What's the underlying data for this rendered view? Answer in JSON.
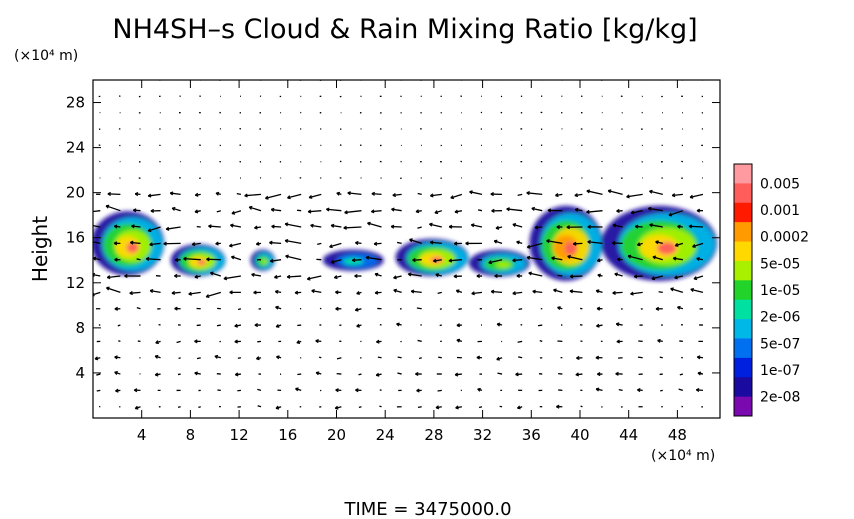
{
  "chart_data": {
    "type": "heatmap",
    "title": "NH4SH–s Cloud & Rain Mixing Ratio [kg/kg]",
    "ylabel": "Height",
    "xunit": "(×10⁴ m)",
    "yunit": "(×10⁴ m)",
    "footer": "TIME  =  3475000.0",
    "xlim": [
      0,
      51.5
    ],
    "ylim": [
      0,
      30
    ],
    "xticks": [
      "4",
      "8",
      "12",
      "16",
      "20",
      "24",
      "28",
      "32",
      "36",
      "40",
      "44",
      "48"
    ],
    "yticks": [
      "4",
      "8",
      "12",
      "16",
      "20",
      "24",
      "28"
    ],
    "xtick_values": [
      4,
      8,
      12,
      16,
      20,
      24,
      28,
      32,
      36,
      40,
      44,
      48
    ],
    "ytick_values": [
      4,
      8,
      12,
      16,
      20,
      24,
      28
    ],
    "colorbar": {
      "labels": [
        "0.005",
        "0.001",
        "0.0002",
        "5e-05",
        "1e-05",
        "2e-06",
        "5e-07",
        "1e-07",
        "2e-08"
      ],
      "colors": [
        "#ff9aa0",
        "#ff5c5c",
        "#ff1a00",
        "#ff9a00",
        "#ffd800",
        "#a8f000",
        "#22d42a",
        "#00e0a0",
        "#00b8e8",
        "#0070f0",
        "#0020e0",
        "#1a0aa0",
        "#7a0ab0"
      ]
    },
    "cloud_regions": [
      {
        "x": [
          0,
          6
        ],
        "y": [
          12.5,
          18.5
        ],
        "level": "high"
      },
      {
        "x": [
          6.5,
          11
        ],
        "y": [
          12.5,
          15.5
        ],
        "level": "high"
      },
      {
        "x": [
          13,
          15
        ],
        "y": [
          13,
          15
        ],
        "level": "mid"
      },
      {
        "x": [
          19,
          24
        ],
        "y": [
          13,
          15
        ],
        "level": "low"
      },
      {
        "x": [
          25,
          31
        ],
        "y": [
          12.5,
          16
        ],
        "level": "high"
      },
      {
        "x": [
          31,
          36
        ],
        "y": [
          12.5,
          15
        ],
        "level": "mid"
      },
      {
        "x": [
          36,
          42
        ],
        "y": [
          12,
          19
        ],
        "level": "very-high"
      },
      {
        "x": [
          42,
          51.5
        ],
        "y": [
          12,
          19
        ],
        "level": "high"
      }
    ],
    "vector_field": "wind arrows"
  }
}
